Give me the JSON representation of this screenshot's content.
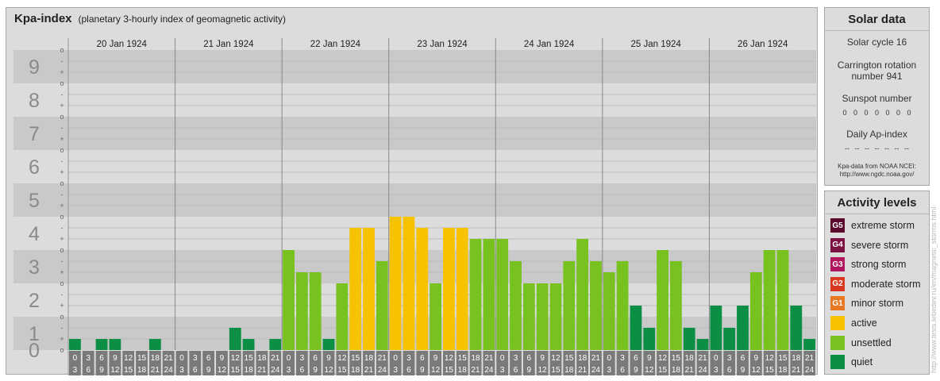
{
  "main": {
    "title": "Kpa-index",
    "subtitle": "(planetary 3-hourly index of geomagnetic activity)"
  },
  "solar": {
    "title": "Solar data",
    "cycle": "Solar cycle 16",
    "carrington_1": "Carrington rotation",
    "carrington_2": "number 941",
    "sunspot_label": "Sunspot number",
    "sunspot_values": "0 0 0 0 0 0 0",
    "ap_label": "Daily Ap-index",
    "ap_values": "-- -- -- -- -- -- --",
    "source_1": "Kpa-data from NOAA NCEI:",
    "source_2": "http://www.ngdc.noaa.gov/"
  },
  "levels": {
    "title": "Activity levels",
    "items": [
      {
        "badge": "G5",
        "label": "extreme storm",
        "color": "#5a0a2a"
      },
      {
        "badge": "G4",
        "label": "severe storm",
        "color": "#7b1043"
      },
      {
        "badge": "G3",
        "label": "strong storm",
        "color": "#b0155e"
      },
      {
        "badge": "G2",
        "label": "moderate storm",
        "color": "#d9381e"
      },
      {
        "badge": "G1",
        "label": "minor storm",
        "color": "#e87722"
      },
      {
        "badge": "",
        "label": "active",
        "color": "#f7c200"
      },
      {
        "badge": "",
        "label": "unsettled",
        "color": "#77c21f"
      },
      {
        "badge": "",
        "label": "quiet",
        "color": "#0a8f45"
      }
    ]
  },
  "watermark": "http://www.tesis.lebedev.ru/en/magnetic_storms.html",
  "chart_data": {
    "type": "bar",
    "title": "Kpa-index",
    "ylim": [
      0,
      9
    ],
    "y_ticks": [
      "0",
      "1",
      "2",
      "3",
      "4",
      "5",
      "6",
      "7",
      "8",
      "9"
    ],
    "sub_ticks": [
      "+",
      "o",
      "-"
    ],
    "days": [
      "20 Jan 1924",
      "21 Jan 1924",
      "22 Jan 1924",
      "23 Jan 1924",
      "24 Jan 1924",
      "25 Jan 1924",
      "26 Jan 1924"
    ],
    "interval_start_hours": [
      "0",
      "3",
      "6",
      "9",
      "12",
      "15",
      "18",
      "21"
    ],
    "interval_end_hours": [
      "3",
      "6",
      "9",
      "12",
      "15",
      "18",
      "21",
      "24"
    ],
    "values": [
      0.333,
      0,
      0.333,
      0.333,
      0,
      0,
      0.333,
      0,
      0,
      0,
      0,
      0,
      0.667,
      0.333,
      0,
      0.333,
      3,
      2.333,
      2.333,
      0.333,
      2,
      3.667,
      3.667,
      2.667,
      4,
      4,
      3.667,
      2,
      3.667,
      3.667,
      3.333,
      3.333,
      3.333,
      2.667,
      2,
      2,
      2,
      2.667,
      3.333,
      2.667,
      2.333,
      2.667,
      1.333,
      0.667,
      3,
      2.667,
      0.667,
      0.333,
      1.333,
      0.667,
      1.333,
      2.333,
      3,
      3,
      1.333,
      0.333
    ],
    "level_colors": {
      "quiet": "#0a8f45",
      "unsettled": "#77c21f",
      "active": "#f7c200"
    }
  }
}
